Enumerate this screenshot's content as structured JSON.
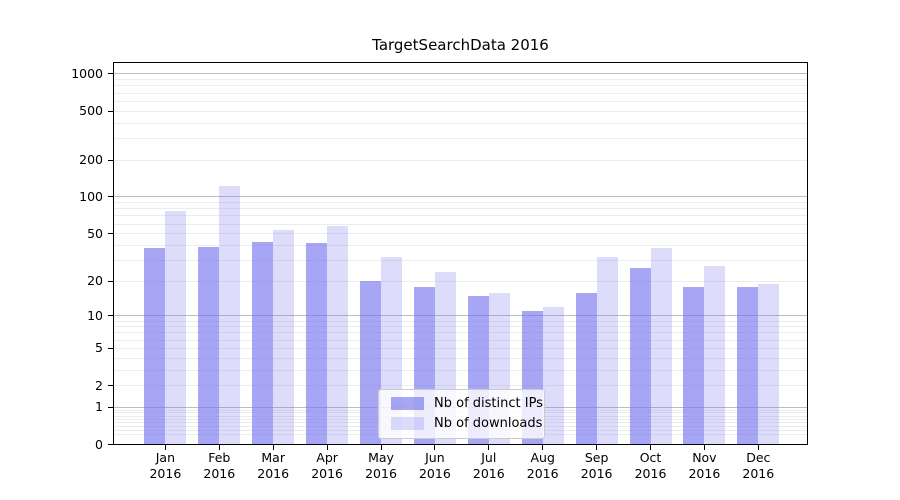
{
  "chart_data": {
    "type": "bar",
    "title": "TargetSearchData 2016",
    "categories": [
      "Jan",
      "Feb",
      "Mar",
      "Apr",
      "May",
      "Jun",
      "Jul",
      "Aug",
      "Sep",
      "Oct",
      "Nov",
      "Dec"
    ],
    "category_year": "2016",
    "series": [
      {
        "name": "Nb of distinct IPs",
        "color_hex_on_white": "#a7a7f4",
        "color_rgba": "rgba(119,119,238,0.65)",
        "values": [
          38,
          39,
          43,
          42,
          20,
          18,
          15,
          11,
          16,
          26,
          18,
          18
        ]
      },
      {
        "name": "Nb of downloads",
        "color_hex_on_white": "#dcdcf8",
        "color_rgba": "rgba(119,119,238,0.25)",
        "values": [
          77,
          122,
          54,
          58,
          32,
          24,
          16,
          12,
          32,
          38,
          27,
          19
        ]
      }
    ],
    "yscale": "log1p",
    "ylim": [
      0,
      1230
    ],
    "yticks": [
      0,
      1,
      2,
      5,
      10,
      20,
      50,
      100,
      200,
      500,
      1000
    ],
    "xlabel": "",
    "ylabel": "",
    "grid": {
      "on": true,
      "major_color": "#bcbcbc",
      "minor_color": "#ececec"
    },
    "legend": {
      "position": "lower-center-inside"
    }
  }
}
